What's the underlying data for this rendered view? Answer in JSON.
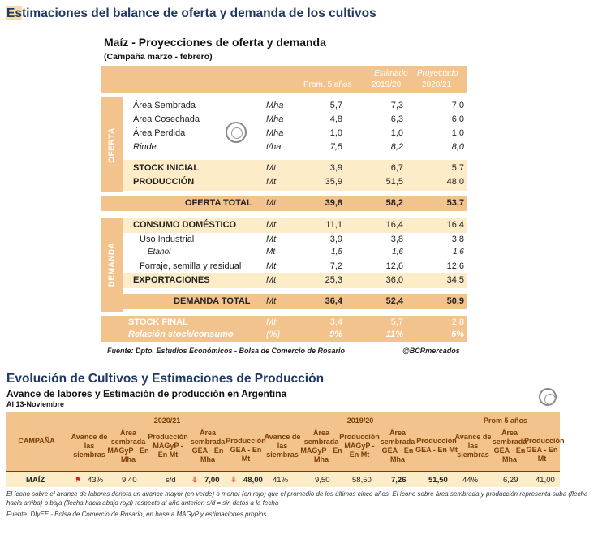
{
  "main_title_first": "Es",
  "main_title_rest": "timaciones del balance de oferta y demanda de los cultivos",
  "table1": {
    "title": "Maíz - Proyecciones de oferta y demanda",
    "subtitle": "(Campaña marzo - febrero)",
    "header": {
      "col1": "Prom. 5 años",
      "col2_top": "Estimado",
      "col2": "2019/20",
      "col3_top": "Proyectado",
      "col3": "2020/21"
    },
    "side_oferta": "OFERTA",
    "side_demanda": "DEMANDA",
    "rows": {
      "area_sembrada": {
        "label": "Área Sembrada",
        "unit": "Mha",
        "v1": "5,7",
        "v2": "7,3",
        "v3": "7,0"
      },
      "area_cosechada": {
        "label": "Área Cosechada",
        "unit": "Mha",
        "v1": "4,8",
        "v2": "6,3",
        "v3": "6,0"
      },
      "area_perdida": {
        "label": "Área Perdida",
        "unit": "Mha",
        "v1": "1,0",
        "v2": "1,0",
        "v3": "1,0"
      },
      "rinde": {
        "label": "Rinde",
        "unit": "t/ha",
        "v1": "7,5",
        "v2": "8,2",
        "v3": "8,0"
      },
      "stock_inicial": {
        "label": "STOCK INICIAL",
        "unit": "Mt",
        "v1": "3,9",
        "v2": "6,7",
        "v3": "5,7"
      },
      "produccion": {
        "label": "PRODUCCIÓN",
        "unit": "Mt",
        "v1": "35,9",
        "v2": "51,5",
        "v3": "48,0"
      },
      "oferta_total": {
        "label": "OFERTA TOTAL",
        "unit": "Mt",
        "v1": "39,8",
        "v2": "58,2",
        "v3": "53,7"
      },
      "consumo": {
        "label": "CONSUMO DOMÉSTICO",
        "unit": "Mt",
        "v1": "11,1",
        "v2": "16,4",
        "v3": "16,4"
      },
      "uso_industrial": {
        "label": "Uso Industrial",
        "unit": "Mt",
        "v1": "3,9",
        "v2": "3,8",
        "v3": "3,8"
      },
      "etanol": {
        "label": "Etanol",
        "unit": "Mt",
        "v1": "1,5",
        "v2": "1,6",
        "v3": "1,6"
      },
      "forraje": {
        "label": "Forraje, semilla y residual",
        "unit": "Mt",
        "v1": "7,2",
        "v2": "12,6",
        "v3": "12,6"
      },
      "exportaciones": {
        "label": "EXPORTACIONES",
        "unit": "Mt",
        "v1": "25,3",
        "v2": "36,0",
        "v3": "34,5"
      },
      "demanda_total": {
        "label": "DEMANDA TOTAL",
        "unit": "Mt",
        "v1": "36,4",
        "v2": "52,4",
        "v3": "50,9"
      },
      "stock_final": {
        "label": "STOCK FINAL",
        "unit": "Mt",
        "v1": "3,4",
        "v2": "5,7",
        "v3": "2,8"
      },
      "relacion": {
        "label": "Relación stock/consumo",
        "unit": "(%)",
        "v1": "9%",
        "v2": "11%",
        "v3": "6%"
      }
    },
    "source": "Fuente: Dpto. Estudios Económicos - Bolsa de Comercio de Rosario",
    "handle": "@BCRmercados"
  },
  "section2": {
    "title": "Evolución de Cultivos y Estimaciones de Producción",
    "table_title": "Avance de labores y Estimación de producción en Argentina",
    "date": "Al 13-Noviembre",
    "group1": "2020/21",
    "group2": "2019/20",
    "group3": "Prom 5 años",
    "campana": "CAMPAÑA",
    "h_avance": "Avance de las siembras",
    "h_area_magyp": "Área sembrada MAGyP - En Mha",
    "h_prod_magyp": "Producción MAGyP - En Mt",
    "h_area_gea": "Área sembrada GEA - En Mha",
    "h_prod_gea": "Producción GEA - En Mt",
    "row": {
      "crop": "MAÍZ",
      "a1": "43%",
      "b1": "9,40",
      "c1": "s/d",
      "d1": "7,00",
      "e1": "48,00",
      "a2": "41%",
      "b2": "9,50",
      "c2": "58,50",
      "d2": "7,26",
      "e2": "51,50",
      "a3": "44%",
      "d3": "6,29",
      "e3": "41,00"
    },
    "note": "El ícono sobre el avance de labores denota un avance mayor (en verde) o menor (en rojo) que el promedio de los últimos cinco años. El ícono sobre área sembrada y producción representa suba (flecha hacia arriba) o baja (flecha hacia abajo roja) respecto al año anterior. s/d = sin datos a la fecha",
    "source": "Fuente: DIyEE - Bolsa de Comercio de Rosario, en base a MAGyP y estimaciones propios"
  }
}
